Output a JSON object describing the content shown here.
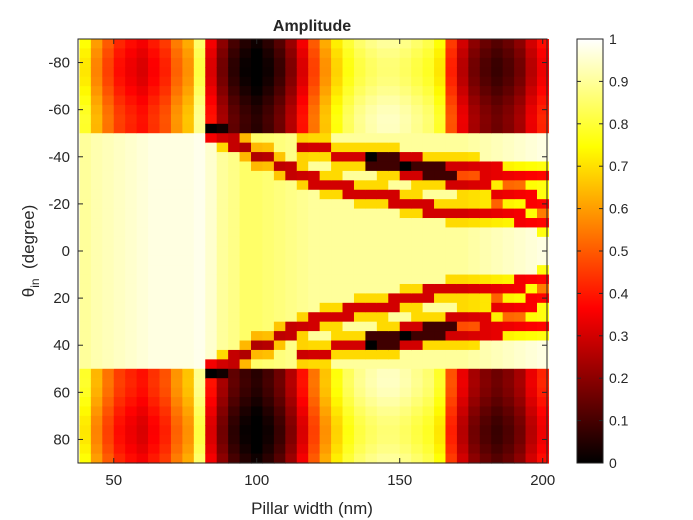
{
  "chart_data": {
    "type": "heatmap",
    "title": "Amplitude",
    "xlabel": "Pillar width (nm)",
    "ylabel": {
      "prefix": "θ",
      "subscript": "in",
      "suffix": "  (degree)"
    },
    "xlim": [
      37.5,
      201.5
    ],
    "ylim": [
      -90,
      90
    ],
    "y_direction": "reversed",
    "x_ticks": [
      50,
      100,
      150,
      200
    ],
    "x_tick_labels": [
      "50",
      "100",
      "150",
      "200"
    ],
    "y_ticks": [
      -80,
      -60,
      -40,
      -20,
      0,
      20,
      40,
      60,
      80
    ],
    "y_tick_labels": [
      "-80",
      "-60",
      "-40",
      "-20",
      "0",
      "20",
      "40",
      "60",
      "80"
    ],
    "colormap": "hot",
    "clim": [
      0,
      1
    ],
    "colorbar_ticks": [
      0,
      0.1,
      0.2,
      0.3,
      0.4,
      0.5,
      0.6,
      0.7,
      0.8,
      0.9,
      1
    ],
    "colorbar_tick_labels": [
      "0",
      "0.1",
      "0.2",
      "0.3",
      "0.4",
      "0.5",
      "0.6",
      "0.7",
      "0.8",
      "0.9",
      "1"
    ],
    "x": [
      40,
      44,
      48,
      52,
      56,
      60,
      64,
      68,
      72,
      76,
      80,
      84,
      88,
      92,
      96,
      100,
      104,
      108,
      112,
      116,
      120,
      124,
      128,
      132,
      136,
      140,
      144,
      148,
      152,
      156,
      160,
      164,
      168,
      172,
      176,
      180,
      184,
      188,
      192,
      196,
      200
    ],
    "y": [
      -88,
      -84,
      -80,
      -76,
      -72,
      -68,
      -64,
      -60,
      -56,
      -52,
      -48,
      -44,
      -40,
      -36,
      -32,
      -28,
      -24,
      -20,
      -16,
      -12,
      -8,
      -4,
      0,
      4,
      8,
      12,
      16,
      20,
      24,
      28,
      32,
      36,
      40,
      44,
      48,
      52,
      56,
      60,
      64,
      68,
      72,
      76,
      80,
      84,
      88
    ],
    "column_profiles": {
      "outer_band": [
        0.75,
        0.6,
        0.5,
        0.42,
        0.38,
        0.35,
        0.4,
        0.45,
        0.55,
        0.62,
        0.85,
        0.35,
        0.2,
        0.1,
        0.05,
        0.02,
        0.06,
        0.12,
        0.22,
        0.35,
        0.5,
        0.62,
        0.72,
        0.8,
        0.85,
        0.88,
        0.9,
        0.9,
        0.88,
        0.85,
        0.82,
        0.75,
        0.45,
        0.3,
        0.2,
        0.15,
        0.12,
        0.15,
        0.2,
        0.3,
        0.38
      ],
      "inner_band": [
        0.9,
        0.92,
        0.93,
        0.94,
        0.95,
        0.96,
        0.97,
        0.97,
        0.97,
        0.97,
        0.98,
        0.95,
        0.9,
        0.88,
        0.85,
        0.85,
        0.86,
        0.87,
        0.88,
        0.89,
        0.9,
        0.9,
        0.9,
        0.9,
        0.9,
        0.9,
        0.9,
        0.9,
        0.9,
        0.9,
        0.9,
        0.9,
        0.9,
        0.9,
        0.91,
        0.92,
        0.93,
        0.94,
        0.95,
        0.96,
        0.97
      ],
      "outer_band_angle_deg": 50
    },
    "resonance_branches": [
      {
        "x": [
          84,
          120,
          160,
          200
        ],
        "angle_deg": [
          50,
          30,
          18,
          13
        ]
      },
      {
        "x": [
          116,
          160,
          200
        ],
        "angle_deg": [
          45,
          32,
          21
        ]
      },
      {
        "x": [
          140,
          180,
          200
        ],
        "angle_deg": [
          40,
          34,
          32
        ]
      }
    ],
    "resonance_depth": 0.6
  }
}
